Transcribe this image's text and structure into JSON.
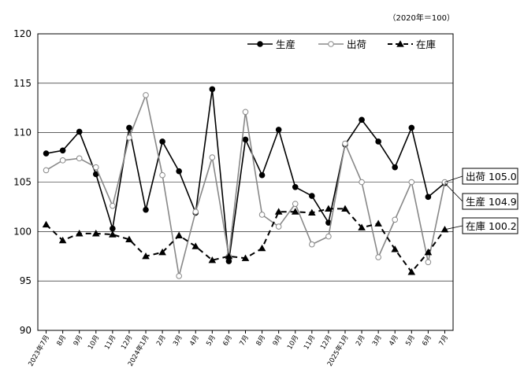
{
  "chart_data": {
    "type": "line",
    "unit_note": "（2020年＝100）",
    "ylim": [
      90,
      120
    ],
    "yticks": [
      90,
      95,
      100,
      105,
      110,
      115,
      120
    ],
    "grid": "horizontal",
    "legend_position": "top-right",
    "categories": [
      "2023年7月",
      "8月",
      "9月",
      "10月",
      "11月",
      "12月",
      "2024年1月",
      "2月",
      "3月",
      "4月",
      "5月",
      "6月",
      "7月",
      "8月",
      "9月",
      "10月",
      "11月",
      "12月",
      "2025年1月",
      "2月",
      "3月",
      "4月",
      "5月",
      "6月",
      "7月"
    ],
    "series": [
      {
        "name": "生産",
        "color": "#000000",
        "marker": "filled-circle",
        "line": "solid",
        "values": [
          107.9,
          108.2,
          110.1,
          105.8,
          100.3,
          110.5,
          102.2,
          109.1,
          106.1,
          101.9,
          114.4,
          97.0,
          109.3,
          105.7,
          110.3,
          104.5,
          103.6,
          100.9,
          108.8,
          111.3,
          109.1,
          106.5,
          110.5,
          103.5,
          104.9
        ]
      },
      {
        "name": "出荷",
        "color": "#888888",
        "marker": "open-circle",
        "line": "solid",
        "values": [
          106.2,
          107.2,
          107.4,
          106.5,
          102.6,
          109.5,
          113.8,
          105.7,
          95.5,
          102.0,
          107.5,
          97.5,
          112.1,
          101.7,
          100.5,
          102.8,
          98.7,
          99.5,
          108.9,
          105.0,
          97.4,
          101.2,
          105.0,
          96.9,
          105.0
        ]
      },
      {
        "name": "在庫",
        "color": "#000000",
        "marker": "filled-triangle",
        "line": "dashed",
        "values": [
          100.7,
          99.1,
          99.8,
          99.8,
          99.7,
          99.2,
          97.5,
          97.9,
          99.6,
          98.5,
          97.1,
          97.5,
          97.3,
          98.3,
          102.0,
          102.0,
          101.9,
          102.3,
          102.3,
          100.4,
          100.8,
          98.2,
          95.9,
          97.9,
          100.2
        ]
      }
    ],
    "end_labels": [
      {
        "series": "出荷",
        "text": "出荷 105.0"
      },
      {
        "series": "生産",
        "text": "生産 104.9"
      },
      {
        "series": "在庫",
        "text": "在庫 100.2"
      }
    ]
  }
}
